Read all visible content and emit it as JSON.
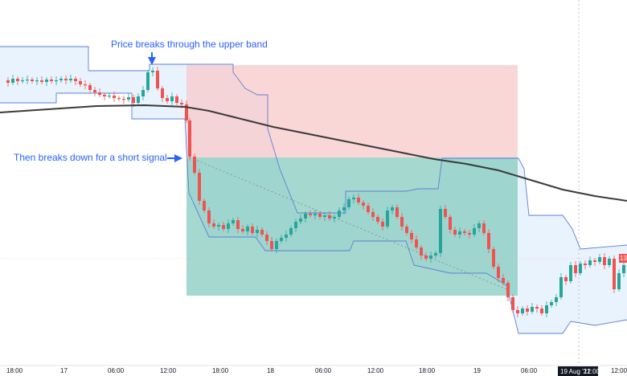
{
  "chart_data": {
    "type": "candlestick",
    "annotations": [
      {
        "text": "Price breaks through the upper band",
        "arrow": "down"
      },
      {
        "text": "Then breaks down for a short signal",
        "arrow": "right"
      }
    ],
    "x_ticks": [
      "18:00",
      "17",
      "06:00",
      "12:00",
      "18:00",
      "18",
      "06:00",
      "12:00",
      "18:00",
      "19",
      "06:00",
      "12:00"
    ],
    "crosshair_label": "19 Aug '21",
    "crosshair_time": "12:00",
    "right_price_tag": "13",
    "trade_zones": [
      {
        "name": "stop",
        "color": "#f8c9c9"
      },
      {
        "name": "target",
        "color": "#7fc8bb"
      }
    ],
    "series": [
      {
        "name": "candles",
        "up_color": "#26a69a",
        "down_color": "#ef5350"
      },
      {
        "name": "moving-average",
        "color": "#3a3a3a"
      },
      {
        "name": "channel-bands",
        "color": "#5b7fd9"
      }
    ],
    "grid": false
  }
}
